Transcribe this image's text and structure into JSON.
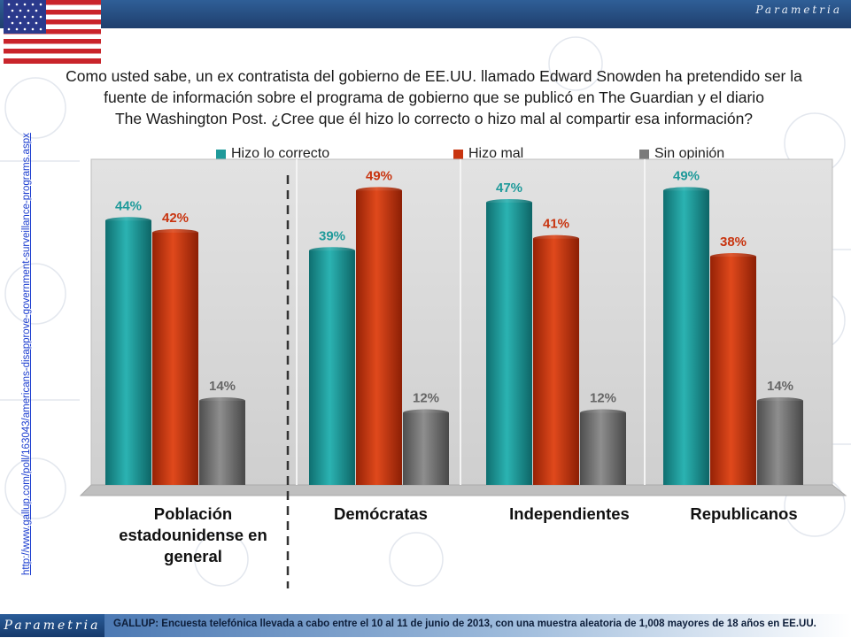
{
  "header": {
    "brand": "Parametria",
    "question_lines": [
      "Como usted sabe, un ex contratista del gobierno de EE.UU. llamado Edward Snowden ha pretendido ser la",
      "fuente de información sobre el programa de gobierno que se publicó en The Guardian y el diario",
      "The Washington Post. ¿Cree que él hizo lo correcto o hizo mal al compartir esa información?"
    ]
  },
  "source_link": "http://www.gallup.com/poll/163043/americans-disapprove-government-surveillance-programs.aspx",
  "footer": {
    "logo": "Parametria",
    "note": "GALLUP: Encuesta telefónica llevada a cabo entre el 10 al 11 de junio de 2013, con una muestra aleatoria de 1,008 mayores de 18 años en EE.UU."
  },
  "colors": {
    "teal": "#1f9a9a",
    "red": "#c8340f",
    "gray": "#7a7a7a",
    "topbar": "#244b80"
  },
  "chart_data": {
    "type": "bar",
    "categories": [
      "Población estadounidense en general",
      "Demócratas",
      "Independientes",
      "Republicanos"
    ],
    "category_label_lines": [
      [
        "Población",
        "estadounidense en",
        "general"
      ],
      [
        "Demócratas"
      ],
      [
        "Independientes"
      ],
      [
        "Republicanos"
      ]
    ],
    "series": [
      {
        "name": "Hizo lo correcto",
        "color": "#1f9a9a",
        "values": [
          44,
          39,
          47,
          49
        ]
      },
      {
        "name": "Hizo mal",
        "color": "#c8340f",
        "values": [
          42,
          49,
          41,
          38
        ]
      },
      {
        "name": "Sin opinión",
        "color": "#7a7a7a",
        "values": [
          14,
          12,
          12,
          14
        ]
      }
    ],
    "value_suffix": "%",
    "ylim": [
      0,
      56
    ],
    "legend_position": "top",
    "grid": false
  }
}
